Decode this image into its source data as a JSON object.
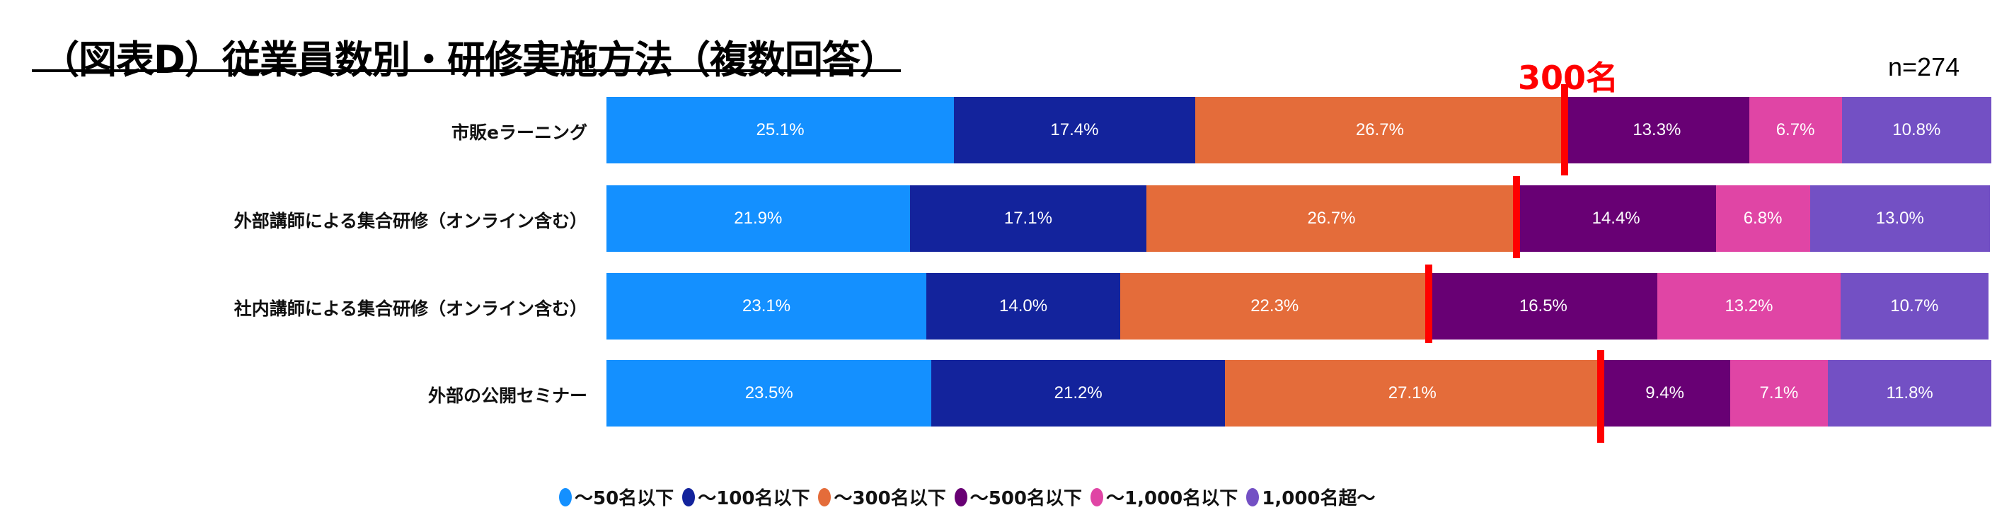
{
  "header": {
    "title": "（図表D）従業員数別・研修実施方法（複数回答）",
    "sample_size": "n=274",
    "threshold_label": "300名"
  },
  "chart_data": {
    "type": "bar",
    "orientation": "horizontal-stacked-100",
    "title": "（図表D）従業員数別・研修実施方法（複数回答）",
    "categories": [
      "市販eラーニング",
      "外部講師による集合研修（オンライン含む）",
      "社内講師による集合研修（オンライン含む）",
      "外部の公開セミナー"
    ],
    "series": [
      {
        "name": "～50名以下",
        "color": "#1490ff",
        "values": [
          25.1,
          21.9,
          23.1,
          23.5
        ]
      },
      {
        "name": "～100名以下",
        "color": "#13239c",
        "values": [
          17.4,
          17.1,
          14.0,
          21.2
        ]
      },
      {
        "name": "～300名以下",
        "color": "#e46c3a",
        "values": [
          26.7,
          26.7,
          22.3,
          27.1
        ]
      },
      {
        "name": "～500名以下",
        "color": "#680074",
        "values": [
          13.3,
          14.4,
          16.5,
          9.4
        ]
      },
      {
        "name": "～1,000名以下",
        "color": "#e045a5",
        "values": [
          6.7,
          6.8,
          13.2,
          7.1
        ]
      },
      {
        "name": "1,000名超～",
        "color": "#7350c4",
        "values": [
          10.8,
          13.0,
          10.7,
          11.8
        ]
      }
    ],
    "value_labels": [
      [
        "25.1%",
        "17.4%",
        "26.7%",
        "13.3%",
        "6.7%",
        "10.8%"
      ],
      [
        "21.9%",
        "17.1%",
        "26.7%",
        "14.4%",
        "6.8%",
        "13.0%"
      ],
      [
        "23.1%",
        "14.0%",
        "22.3%",
        "16.5%",
        "13.2%",
        "10.7%"
      ],
      [
        "23.5%",
        "21.2%",
        "27.1%",
        "9.4%",
        "7.1%",
        "11.8%"
      ]
    ],
    "annotation": "300名",
    "annotation_color": "#ff0000",
    "xlim": [
      0,
      100
    ],
    "legend_position": "bottom",
    "grid": false
  }
}
